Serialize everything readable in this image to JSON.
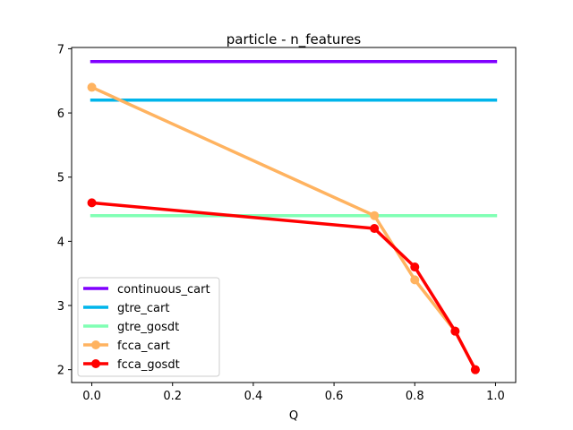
{
  "chart_data": {
    "type": "line",
    "title": "particle - n_features",
    "xlabel": "Q",
    "ylabel": "",
    "xlim": [
      -0.05,
      1.05
    ],
    "ylim": [
      1.8,
      7.02
    ],
    "xticks": [
      0.0,
      0.2,
      0.4,
      0.6,
      0.8,
      1.0
    ],
    "xtick_labels": [
      "0.0",
      "0.2",
      "0.4",
      "0.6",
      "0.8",
      "1.0"
    ],
    "yticks": [
      2,
      3,
      4,
      5,
      6,
      7
    ],
    "ytick_labels": [
      "2",
      "3",
      "4",
      "5",
      "6",
      "7"
    ],
    "grid": false,
    "legend_position": "lower-left",
    "series": [
      {
        "name": "continuous_cart",
        "color": "#8000ff",
        "markers": false,
        "x": [
          0.0,
          1.0
        ],
        "y": [
          6.8,
          6.8
        ]
      },
      {
        "name": "gtre_cart",
        "color": "#00b5eb",
        "markers": false,
        "x": [
          0.0,
          1.0
        ],
        "y": [
          6.2,
          6.2
        ]
      },
      {
        "name": "gtre_gosdt",
        "color": "#80ffb4",
        "markers": false,
        "x": [
          0.0,
          1.0
        ],
        "y": [
          4.4,
          4.4
        ]
      },
      {
        "name": "fcca_cart",
        "color": "#ffb360",
        "markers": true,
        "x": [
          0.0,
          0.7,
          0.8,
          0.9,
          0.95
        ],
        "y": [
          6.4,
          4.4,
          3.4,
          2.6,
          2.0
        ]
      },
      {
        "name": "fcca_gosdt",
        "color": "#ff0000",
        "markers": true,
        "x": [
          0.0,
          0.7,
          0.8,
          0.9,
          0.95
        ],
        "y": [
          4.6,
          4.2,
          3.6,
          2.6,
          2.0
        ]
      }
    ]
  }
}
